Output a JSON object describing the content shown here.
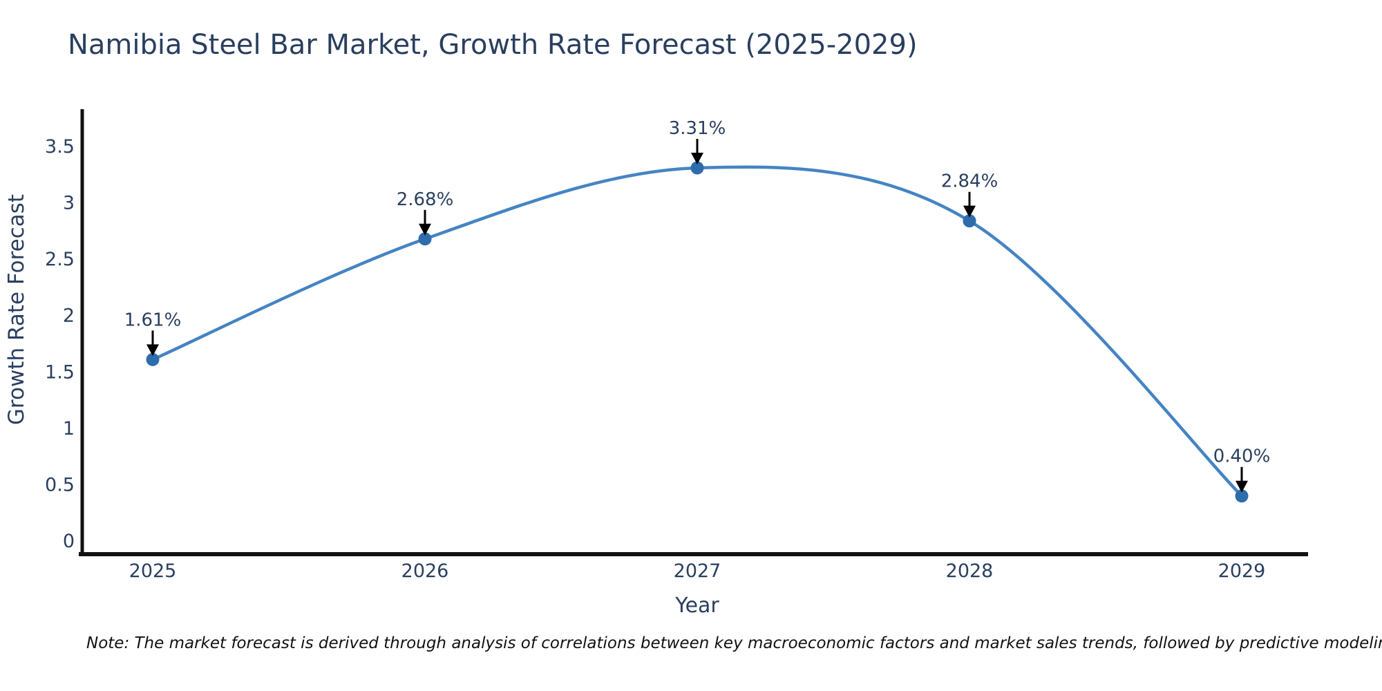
{
  "title": "Namibia Steel Bar Market, Growth Rate Forecast (2025-2029)",
  "note": "Note: The market forecast is derived through analysis of correlations between key macroeconomic factors and market sales trends, followed by predictive modeling to project future sales",
  "chart_data": {
    "type": "line",
    "title": "Namibia Steel Bar Market, Growth Rate Forecast (2025-2029)",
    "xlabel": "Year",
    "ylabel": "Growth Rate Forecast",
    "categories": [
      "2025",
      "2026",
      "2027",
      "2028",
      "2029"
    ],
    "values": [
      1.61,
      2.68,
      3.31,
      2.84,
      0.4
    ],
    "point_labels": [
      "1.61%",
      "2.68%",
      "3.31%",
      "2.84%",
      "0.40%"
    ],
    "yticks": [
      0,
      0.5,
      1,
      1.5,
      2,
      2.5,
      3,
      3.5
    ],
    "ytick_labels": [
      "0",
      "0.5",
      "1",
      "1.5",
      "2",
      "2.5",
      "3",
      "3.5"
    ],
    "ylim": [
      0,
      3.5
    ],
    "grid": false,
    "legend_position": "none",
    "line_shape": "spline",
    "colors": {
      "line": "#4584c2",
      "marker": "#2e6cac",
      "axis": "#111111",
      "labels": "#2a3f5f",
      "annotation_text": "#2a3f5f",
      "annotation_arrow": "#000000",
      "background": "#ffffff"
    }
  }
}
